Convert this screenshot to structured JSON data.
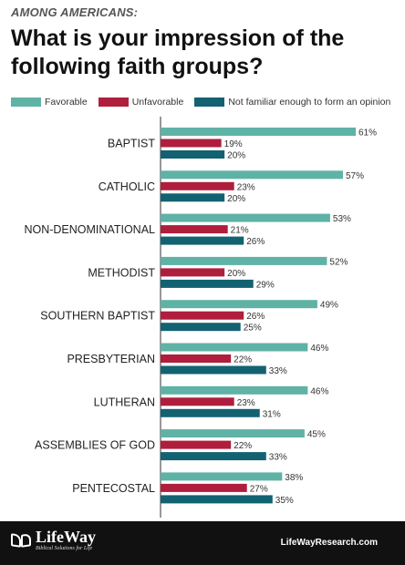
{
  "header": {
    "kicker": "AMONG AMERICANS:",
    "title": "What is your impression of the following faith groups?"
  },
  "legend": {
    "items": [
      {
        "label": "Favorable",
        "color": "#5fb2a6"
      },
      {
        "label": "Unfavorable",
        "color": "#b01e3d"
      },
      {
        "label": "Not familiar enough to form an opinion",
        "color": "#136272"
      }
    ]
  },
  "chart_data": {
    "type": "bar",
    "orientation": "horizontal",
    "title": "What is your impression of the following faith groups?",
    "xlabel": "",
    "ylabel": "",
    "xlim": [
      0,
      65
    ],
    "grid": false,
    "legend_position": "top",
    "value_suffix": "%",
    "categories": [
      "BAPTIST",
      "CATHOLIC",
      "NON-DENOMINATIONAL",
      "METHODIST",
      "SOUTHERN BAPTIST",
      "PRESBYTERIAN",
      "LUTHERAN",
      "ASSEMBLIES OF GOD",
      "PENTECOSTAL"
    ],
    "series": [
      {
        "name": "Favorable",
        "color": "#5fb2a6",
        "values": [
          61,
          57,
          53,
          52,
          49,
          46,
          46,
          45,
          38
        ]
      },
      {
        "name": "Unfavorable",
        "color": "#b01e3d",
        "values": [
          19,
          23,
          21,
          20,
          26,
          22,
          23,
          22,
          27
        ]
      },
      {
        "name": "Not familiar enough to form an opinion",
        "color": "#136272",
        "values": [
          20,
          20,
          26,
          29,
          25,
          33,
          31,
          33,
          35
        ]
      }
    ]
  },
  "footer": {
    "logo_text": "LifeWay",
    "logo_tagline": "Biblical Solutions for Life",
    "site": "LifeWayResearch.com"
  }
}
